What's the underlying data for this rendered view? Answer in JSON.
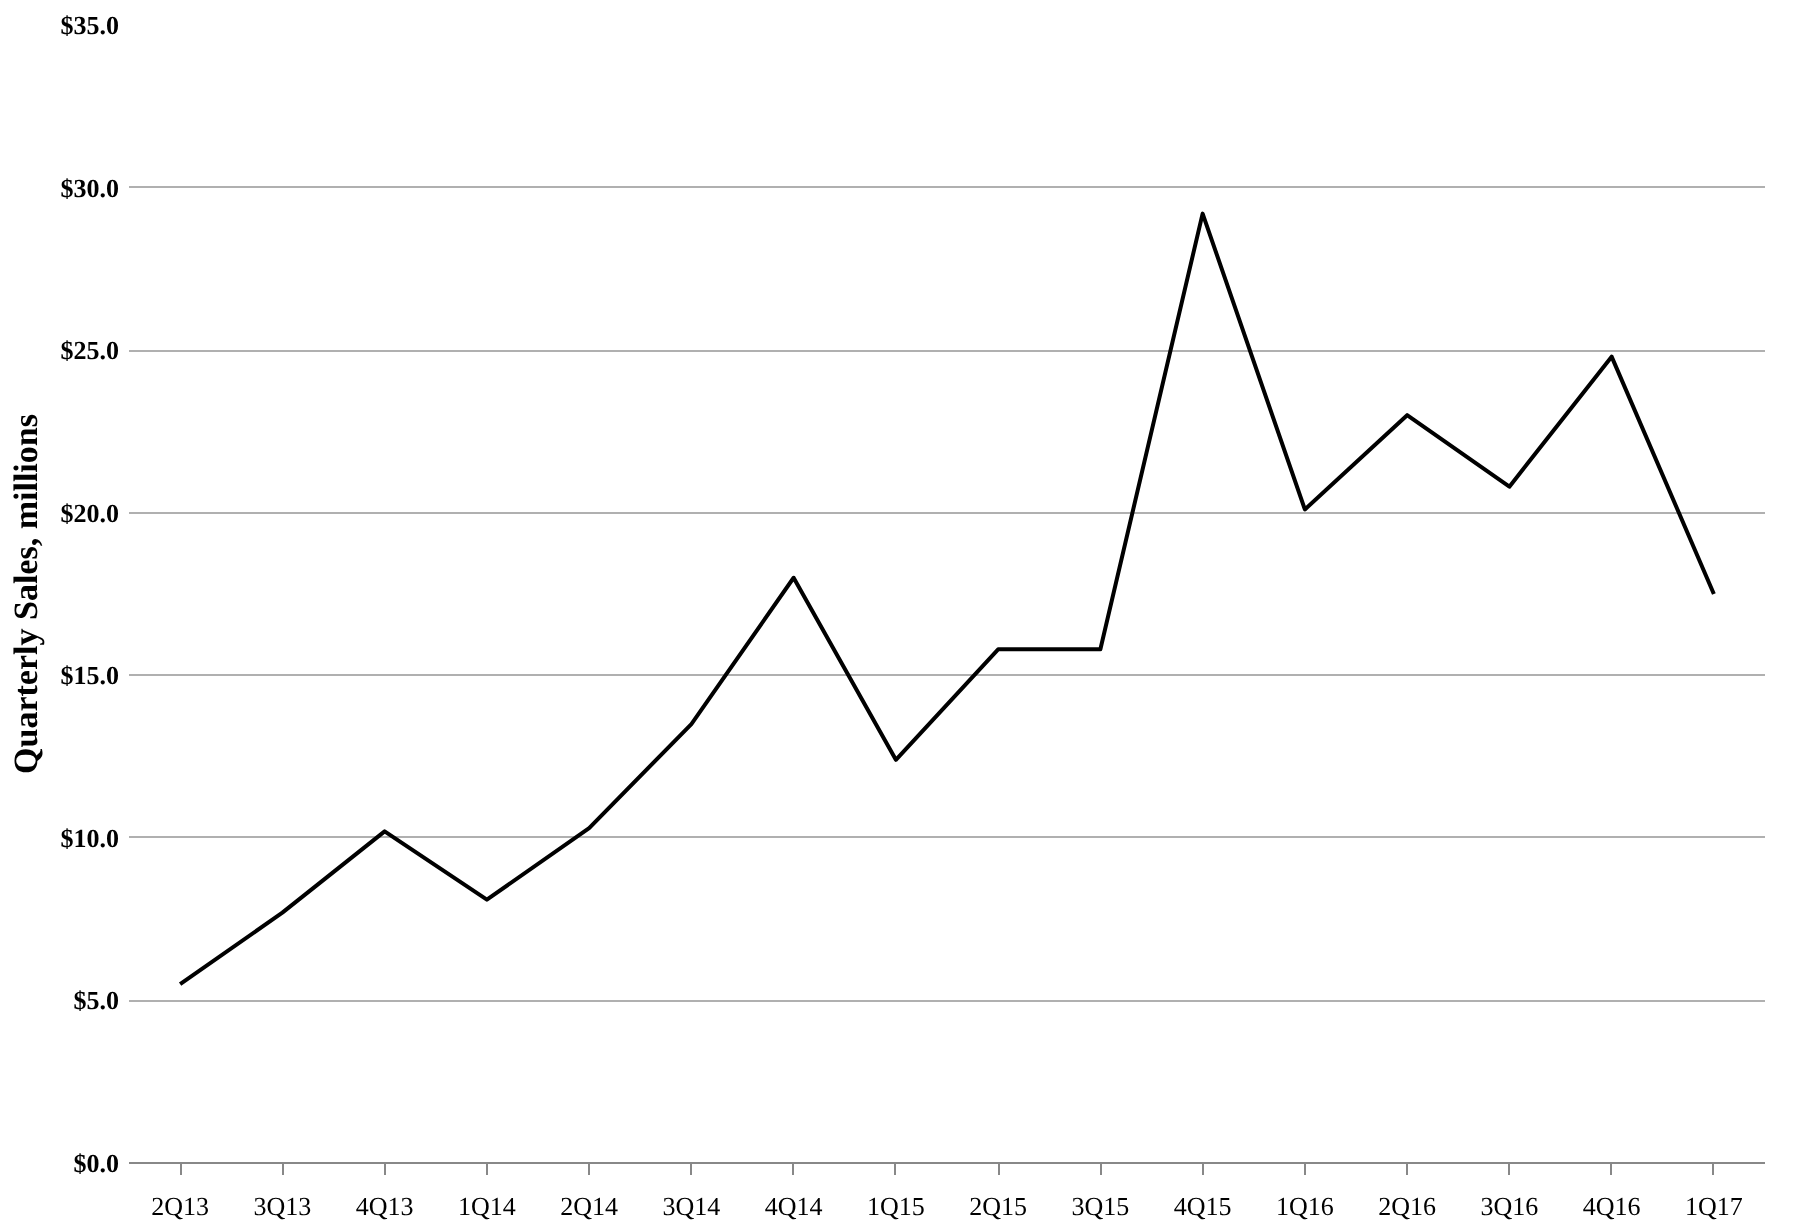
{
  "chart_data": {
    "type": "line",
    "ylabel": "Quarterly Sales, millions",
    "categories": [
      "2Q13",
      "3Q13",
      "4Q13",
      "1Q14",
      "2Q14",
      "3Q14",
      "4Q14",
      "1Q15",
      "2Q15",
      "3Q15",
      "4Q15",
      "1Q16",
      "2Q16",
      "3Q16",
      "4Q16",
      "1Q17"
    ],
    "series": [
      {
        "color": "#000000",
        "values": [
          5.5,
          7.7,
          10.2,
          8.1,
          10.3,
          13.5,
          18.0,
          12.4,
          15.8,
          15.8,
          29.2,
          20.1,
          23.0,
          20.8,
          24.8,
          17.5
        ]
      }
    ],
    "ylim": [
      0,
      35
    ],
    "yticks": [
      {
        "value": 0,
        "label": "$0.0"
      },
      {
        "value": 5,
        "label": "$5.0"
      },
      {
        "value": 10,
        "label": "$10.0"
      },
      {
        "value": 15,
        "label": "$15.0"
      },
      {
        "value": 20,
        "label": "$20.0"
      },
      {
        "value": 25,
        "label": "$25.0"
      },
      {
        "value": 30,
        "label": "$30.0"
      },
      {
        "value": 35,
        "label": "$35.0"
      }
    ],
    "grid": "y",
    "marker": "none",
    "line_style": "solid"
  }
}
